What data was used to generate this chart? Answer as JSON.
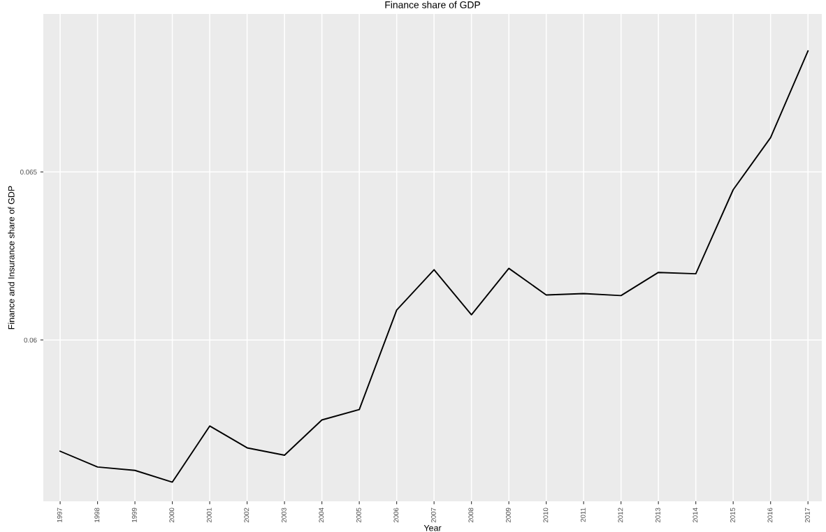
{
  "chart_data": {
    "type": "line",
    "title": "Finance share of GDP",
    "xlabel": "Year",
    "ylabel": "Finance and Insurance share of GDP",
    "x": [
      1997,
      1998,
      1999,
      2000,
      2001,
      2002,
      2003,
      2004,
      2005,
      2006,
      2007,
      2008,
      2009,
      2010,
      2011,
      2012,
      2013,
      2014,
      2015,
      2016,
      2017
    ],
    "series": [
      {
        "color": "#000000",
        "values": [
          0.05669,
          0.05622,
          0.05612,
          0.05577,
          0.05744,
          0.05679,
          0.05657,
          0.05762,
          0.05793,
          0.06089,
          0.06209,
          0.06075,
          0.06213,
          0.06134,
          0.06138,
          0.06132,
          0.06201,
          0.06197,
          0.06447,
          0.06602,
          0.0686
        ]
      }
    ],
    "xlim": [
      1996.55,
      2017.37
    ],
    "xticks": [
      1997,
      1998,
      1999,
      2000,
      2001,
      2002,
      2003,
      2004,
      2005,
      2006,
      2007,
      2008,
      2009,
      2010,
      2011,
      2012,
      2013,
      2014,
      2015,
      2016,
      2017
    ],
    "ylim": [
      0.0552,
      0.0697
    ],
    "yticks": [
      0.06,
      0.065
    ],
    "grid": true,
    "marker": "none",
    "line_style": "solid"
  }
}
